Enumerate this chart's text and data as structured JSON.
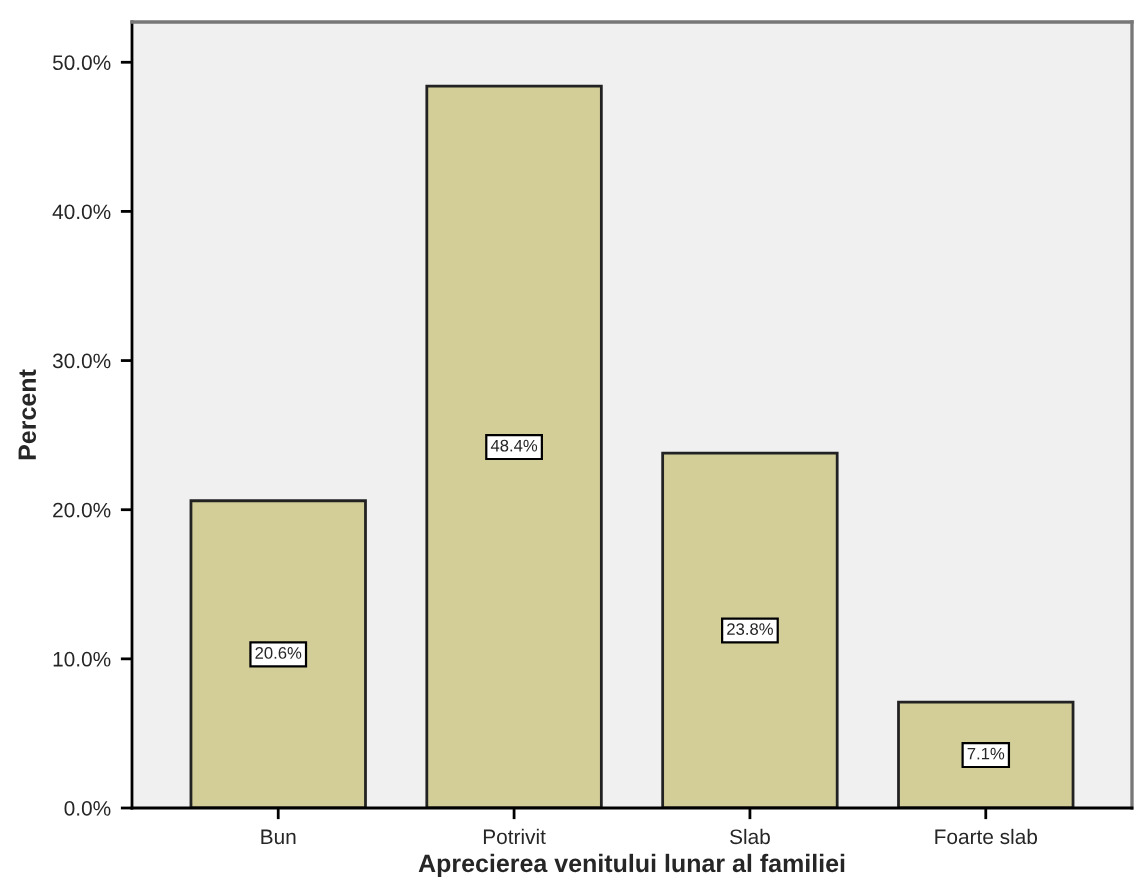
{
  "chart_data": {
    "type": "bar",
    "xlabel": "Aprecierea venitului lunar al familiei",
    "ylabel": "Percent",
    "categories": [
      "Bun",
      "Potrivit",
      "Slab",
      "Foarte slab"
    ],
    "values": [
      20.6,
      48.4,
      23.8,
      7.1
    ],
    "color": "#d3ce98",
    "value_labels": [
      "20.6%",
      "48.4%",
      "23.8%",
      "7.1%"
    ],
    "ylim": [
      0,
      52.7
    ],
    "yticks": [
      {
        "value": 0,
        "label": "0.0%"
      },
      {
        "value": 10,
        "label": "10.0%"
      },
      {
        "value": 20,
        "label": "20.0%"
      },
      {
        "value": 30,
        "label": "30.0%"
      },
      {
        "value": 40,
        "label": "40.0%"
      },
      {
        "value": 50,
        "label": "50.0%"
      }
    ],
    "grid": false
  }
}
